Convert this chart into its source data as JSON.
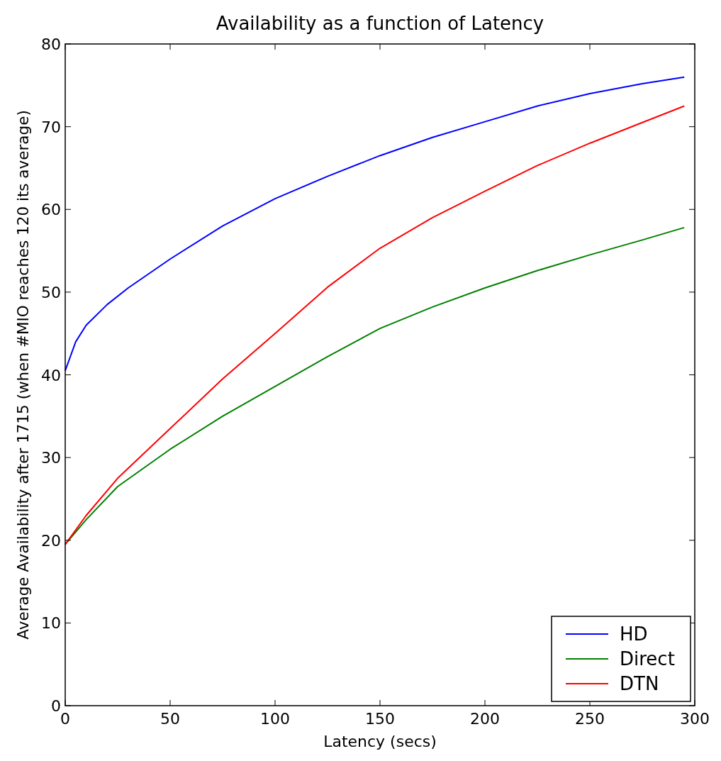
{
  "chart_data": {
    "type": "line",
    "title": "Availability as a function of Latency",
    "xlabel": "Latency (secs)",
    "ylabel": "Average Availability after 1715 (when #MIO reaches 120 its average)",
    "xlim": [
      0,
      300
    ],
    "xticks": [
      0,
      50,
      100,
      150,
      200,
      250,
      300
    ],
    "ylim": [
      0,
      80
    ],
    "yticks": [
      0,
      10,
      20,
      30,
      40,
      50,
      60,
      70,
      80
    ],
    "grid": false,
    "legend": "bottom right",
    "marker": "none",
    "line_style": "solid",
    "series": [
      {
        "name": "HD",
        "color": "#0000ff",
        "x": [
          0,
          5,
          10,
          20,
          30,
          50,
          75,
          100,
          125,
          150,
          175,
          200,
          225,
          250,
          275,
          295
        ],
        "values": [
          40.5,
          44,
          46,
          48.5,
          50.5,
          54,
          58,
          61.3,
          64,
          66.5,
          68.7,
          70.6,
          72.5,
          74,
          75.2,
          76
        ]
      },
      {
        "name": "Direct",
        "color": "#008000",
        "x": [
          0,
          10,
          25,
          50,
          75,
          100,
          125,
          150,
          175,
          200,
          225,
          250,
          275,
          295
        ],
        "values": [
          19.5,
          22.5,
          26.5,
          31,
          35,
          38.6,
          42.2,
          45.6,
          48.2,
          50.5,
          52.6,
          54.5,
          56.3,
          57.8
        ]
      },
      {
        "name": "DTN",
        "color": "#ff0000",
        "x": [
          0,
          10,
          25,
          50,
          75,
          100,
          125,
          150,
          175,
          200,
          225,
          250,
          275,
          295
        ],
        "values": [
          19.5,
          23,
          27.5,
          33.5,
          39.5,
          45,
          50.6,
          55.3,
          59,
          62.2,
          65.3,
          68,
          70.5,
          72.5
        ]
      }
    ]
  }
}
